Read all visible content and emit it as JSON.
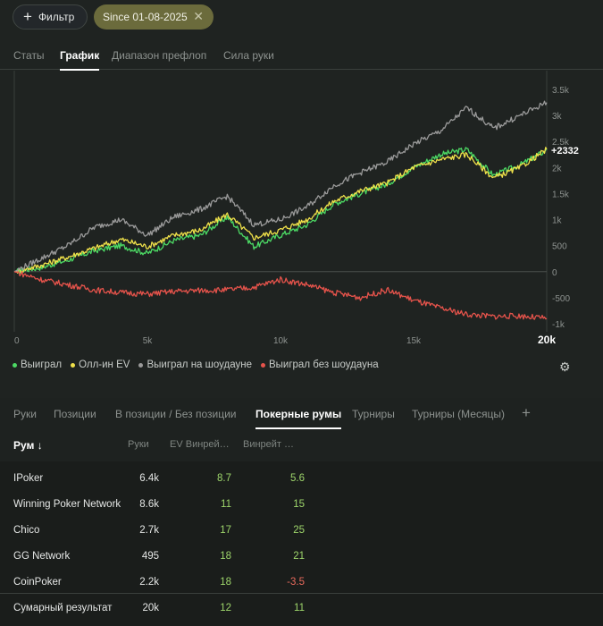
{
  "filters": {
    "filter_label": "Фильтр",
    "chip_label": "Since 01-08-2025"
  },
  "top_tabs": [
    {
      "label": "Статы",
      "active": false
    },
    {
      "label": "График",
      "active": true
    },
    {
      "label": "Диапазон префлоп",
      "active": false
    },
    {
      "label": "Сила руки",
      "active": false
    }
  ],
  "chart_data": {
    "type": "line",
    "x_range": [
      0,
      20000
    ],
    "y_range": [
      -1000,
      3500
    ],
    "x_ticks": [
      "0",
      "5k",
      "10k",
      "15k",
      "20k"
    ],
    "y_ticks": [
      "3.5k",
      "3k",
      "2.5k",
      "2k",
      "1.5k",
      "1k",
      "500",
      "0",
      "-500",
      "-1k"
    ],
    "end_label": "+2332",
    "series": [
      {
        "name": "Выиграл",
        "color": "#4cd964",
        "x": [
          0,
          1000,
          2000,
          3000,
          4000,
          5000,
          6000,
          7000,
          8000,
          9000,
          10000,
          11000,
          12000,
          13000,
          14000,
          15000,
          16000,
          17000,
          18000,
          19000,
          20000
        ],
        "y": [
          0,
          80,
          220,
          400,
          500,
          350,
          600,
          700,
          1050,
          480,
          700,
          900,
          1300,
          1500,
          1680,
          2000,
          2250,
          2350,
          1850,
          2050,
          2332
        ]
      },
      {
        "name": "Олл-ин EV",
        "color": "#f0e14a",
        "x": [
          0,
          1000,
          2000,
          3000,
          4000,
          5000,
          6000,
          7000,
          8000,
          9000,
          10000,
          11000,
          12000,
          13000,
          14000,
          15000,
          16000,
          17000,
          18000,
          19000,
          20000
        ],
        "y": [
          0,
          120,
          280,
          450,
          620,
          480,
          700,
          800,
          1100,
          650,
          800,
          1000,
          1350,
          1550,
          1700,
          2000,
          2150,
          2250,
          1800,
          2000,
          2350
        ]
      },
      {
        "name": "Выиграл на шоудауне",
        "color": "#9a9a9a",
        "x": [
          0,
          1000,
          2000,
          3000,
          4000,
          5000,
          6000,
          7000,
          8000,
          9000,
          10000,
          11000,
          12000,
          13000,
          14000,
          15000,
          16000,
          17000,
          18000,
          19000,
          20000
        ],
        "y": [
          0,
          250,
          500,
          850,
          1000,
          700,
          1050,
          1200,
          1450,
          900,
          1000,
          1250,
          1650,
          1900,
          2100,
          2450,
          2700,
          3150,
          2750,
          3000,
          3250
        ]
      },
      {
        "name": "Выиграл без шоудауна",
        "color": "#e5534b",
        "x": [
          0,
          1000,
          2000,
          3000,
          4000,
          5000,
          6000,
          7000,
          8000,
          9000,
          10000,
          11000,
          12000,
          13000,
          14000,
          15000,
          16000,
          17000,
          18000,
          19000,
          20000
        ],
        "y": [
          0,
          -150,
          -250,
          -350,
          -400,
          -430,
          -380,
          -360,
          -350,
          -300,
          -150,
          -250,
          -400,
          -500,
          -350,
          -550,
          -700,
          -820,
          -860,
          -850,
          -900
        ]
      }
    ]
  },
  "legend_colors": [
    "#4cd964",
    "#f0e14a",
    "#9a9a9a",
    "#e5534b"
  ],
  "bottom_tabs": [
    {
      "label": "Руки",
      "active": false
    },
    {
      "label": "Позиции",
      "active": false
    },
    {
      "label": "В позиции / Без позиции",
      "active": false
    },
    {
      "label": "Покерные румы",
      "active": true
    },
    {
      "label": "Турниры",
      "active": false
    },
    {
      "label": "Турниры (Месяцы)",
      "active": false
    }
  ],
  "add_tab_label": "+",
  "table": {
    "headers": [
      "Рум ↓",
      "Руки",
      "EV Винрей…",
      "Винрейт …"
    ],
    "rows": [
      {
        "name": "IPoker",
        "hands": "6.4k",
        "ev": "8.7",
        "wr": "5.6",
        "neg": false
      },
      {
        "name": "Winning Poker Network",
        "hands": "8.6k",
        "ev": "11",
        "wr": "15",
        "neg": false
      },
      {
        "name": "Chico",
        "hands": "2.7k",
        "ev": "17",
        "wr": "25",
        "neg": false
      },
      {
        "name": "GG Network",
        "hands": "495",
        "ev": "18",
        "wr": "21",
        "neg": false
      },
      {
        "name": "CoinPoker",
        "hands": "2.2k",
        "ev": "18",
        "wr": "-3.5",
        "neg": true
      }
    ],
    "total": {
      "name": "Сумарный результат",
      "hands": "20k",
      "ev": "12",
      "wr": "11"
    }
  }
}
